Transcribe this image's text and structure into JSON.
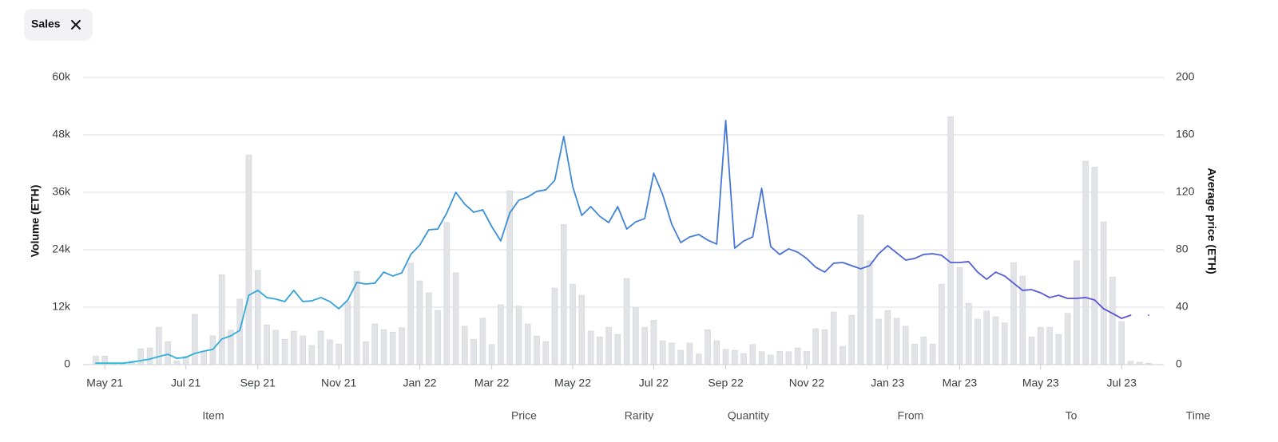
{
  "filter_chip": {
    "label": "Sales"
  },
  "chart_data": {
    "type": "bar",
    "ylabel": "Volume (ETH)",
    "y2label": "Average price (ETH)",
    "categories": [
      null,
      "May 21",
      null,
      null,
      null,
      null,
      null,
      null,
      null,
      null,
      "Jul 21",
      null,
      null,
      null,
      null,
      null,
      null,
      null,
      "Sep 21",
      null,
      null,
      null,
      null,
      null,
      null,
      null,
      null,
      "Nov 21",
      null,
      null,
      null,
      null,
      null,
      null,
      null,
      null,
      "Jan 22",
      null,
      null,
      null,
      null,
      null,
      null,
      null,
      "Mar 22",
      null,
      null,
      null,
      null,
      null,
      null,
      null,
      null,
      "May 22",
      null,
      null,
      null,
      null,
      null,
      null,
      null,
      null,
      "Jul 22",
      null,
      null,
      null,
      null,
      null,
      null,
      null,
      "Sep 22",
      null,
      null,
      null,
      null,
      null,
      null,
      null,
      null,
      "Nov 22",
      null,
      null,
      null,
      null,
      null,
      null,
      null,
      null,
      "Jan 23",
      null,
      null,
      null,
      null,
      null,
      null,
      null,
      "Mar 23",
      null,
      null,
      null,
      null,
      null,
      null,
      null,
      null,
      "May 23",
      null,
      null,
      null,
      null,
      null,
      null,
      null,
      null,
      "Jul 23",
      null,
      null,
      null
    ],
    "series": [
      {
        "type": "bar",
        "color": "#e1e3e6",
        "values": [
          1800,
          1800,
          300,
          300,
          800,
          3300,
          3500,
          7800,
          4800,
          800,
          1800,
          10500,
          2700,
          6000,
          18800,
          7200,
          13700,
          43800,
          19700,
          8300,
          7200,
          5300,
          7000,
          6000,
          4000,
          7000,
          5200,
          4300,
          13200,
          19500,
          4800,
          8500,
          7300,
          6800,
          7700,
          21200,
          17500,
          15000,
          11300,
          29700,
          19200,
          8000,
          5300,
          9700,
          4200,
          12500,
          36300,
          12200,
          8500,
          6000,
          4800,
          16000,
          29300,
          16800,
          14500,
          7000,
          5800,
          7800,
          6300,
          18000,
          12000,
          7800,
          9300,
          5000,
          4500,
          3000,
          4500,
          2200,
          7300,
          5000,
          3200,
          3000,
          2300,
          4200,
          2700,
          2000,
          2800,
          2700,
          3500,
          2800,
          7500,
          7300,
          11000,
          3800,
          10300,
          31300,
          21700,
          9500,
          11300,
          9700,
          8000,
          4300,
          5800,
          4300,
          16800,
          51800,
          20300,
          12800,
          9500,
          11200,
          10000,
          8700,
          21300,
          18500,
          5800,
          7800,
          7800,
          6300,
          10700,
          21700,
          42500,
          41300,
          29800,
          18300,
          9000,
          700,
          500,
          300
        ]
      },
      {
        "type": "line",
        "axis": "y2",
        "colors": [
          "#27b9d8",
          "#5a4bd6"
        ],
        "values": [
          1,
          1,
          1,
          1,
          1.7,
          2.8,
          3.9,
          5.6,
          7.2,
          4.4,
          5,
          7.8,
          9.4,
          10.6,
          17.8,
          20,
          23.9,
          48.3,
          51.7,
          46.7,
          45.6,
          43.9,
          51.7,
          43.9,
          44.4,
          46.7,
          43.9,
          38.9,
          45,
          57.2,
          56.1,
          56.7,
          64.4,
          61.7,
          63.9,
          76.7,
          83.3,
          93.9,
          94.4,
          105.6,
          120,
          111.7,
          106.1,
          107.8,
          96.1,
          86.1,
          105.6,
          114.4,
          116.7,
          120.6,
          121.7,
          128.3,
          158.9,
          123.9,
          103.9,
          110,
          103.3,
          98.9,
          110,
          94.4,
          99.4,
          101.7,
          133.3,
          118.3,
          97.8,
          85,
          88.9,
          90.6,
          86.7,
          83.9,
          170,
          81.1,
          86.1,
          88.9,
          122.8,
          82.2,
          76.7,
          80.6,
          78.3,
          73.9,
          67.8,
          64.4,
          70.6,
          71.1,
          68.9,
          66.7,
          68.9,
          77.2,
          82.8,
          77.8,
          72.8,
          73.9,
          76.7,
          77.2,
          76.1,
          71.1,
          71.1,
          71.7,
          64.4,
          59.4,
          64.4,
          61.7,
          56.7,
          51.7,
          52.2,
          50,
          46.7,
          48.3,
          46.1,
          46.1,
          46.7,
          45,
          38.9,
          35.6,
          32.2,
          34.4,
          null,
          34.4
        ]
      }
    ],
    "ylim": [
      0,
      60000
    ],
    "yticks": [
      0,
      {
        "value": 12000,
        "label": "12k"
      },
      {
        "value": 24000,
        "label": "24k"
      },
      {
        "value": 36000,
        "label": "36k"
      },
      {
        "value": 48000,
        "label": "48k"
      },
      {
        "value": 60000,
        "label": "60k"
      }
    ],
    "y2lim": [
      0,
      200
    ],
    "y2ticks": [
      0,
      40,
      80,
      120,
      160,
      200
    ],
    "grid": true
  },
  "table_header": {
    "columns": [
      "Item",
      "Price",
      "Rarity",
      "Quantity",
      "From",
      "To",
      "Time"
    ]
  }
}
